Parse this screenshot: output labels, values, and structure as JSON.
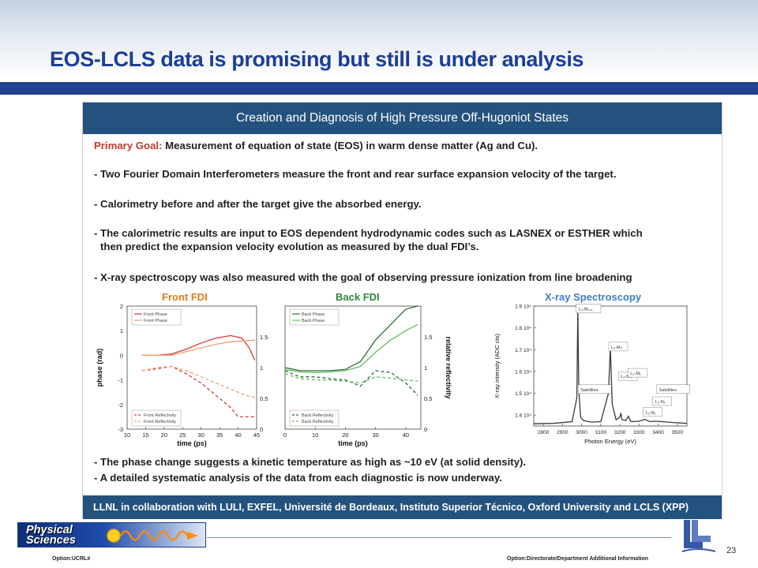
{
  "slide": {
    "title": "EOS-LCLS data is promising but still is under analysis",
    "page_number": "23",
    "footer_left": "Option:UCRL#",
    "footer_right": "Option:Directorate/Department  Additional Information",
    "logo_line1": "Physical",
    "logo_line2": "Sciences",
    "colors": {
      "title": "#1c3f95",
      "rule": "#22428f",
      "panel_header": "#24527e",
      "goal_label": "#c0392b"
    }
  },
  "panel": {
    "header": "Creation and Diagnosis of High Pressure Off-Hugoniot States",
    "goal_label": "Primary Goal:",
    "goal_text": "Measurement of equation of state (EOS) in warm dense matter (Ag and Cu).",
    "bullets": [
      "- Two Fourier Domain Interferometers measure the front and rear surface expansion velocity of the target.",
      "- Calorimetry before and after the target give the absorbed energy.",
      "- The calorimetric results are input to EOS dependent hydrodynamic codes such as LASNEX or ESTHER which",
      "then predict the expansion velocity evolution as measured by the dual FDI’s.",
      "- X-ray spectroscopy was also measured with the goal of observing pressure ionization from line broadening"
    ],
    "conclusions": [
      "- The phase change suggests a kinetic temperature as high as ~10 eV (at solid density).",
      "- A detailed systematic analysis of the data from each diagnostic is now underway."
    ],
    "footer": "LLNL in collaboration with LULI, EXFEL, Université de Bordeaux, Instituto Superior Técnico,  Oxford University and LCLS (XPP)"
  },
  "chart_data": [
    {
      "type": "line",
      "title": "Front FDI",
      "xlabel": "time (ps)",
      "ylabel": "phase (rad)",
      "xlim": [
        10,
        45
      ],
      "ylim": [
        -3,
        2
      ],
      "y2lim": [
        0,
        2
      ],
      "xticks": [
        "10",
        "15",
        "20",
        "25",
        "30",
        "35",
        "40",
        "45"
      ],
      "yticks": [
        "2",
        "1",
        "0",
        "-1",
        "-2",
        "-3"
      ],
      "y2ticks": [
        "1.5",
        "1",
        "0.5",
        "0"
      ],
      "legend_top": [
        "Front Phase",
        "Front Phase"
      ],
      "legend_bottom": [
        "Front Reflectivity",
        "Front Reflectivity"
      ],
      "series": [
        {
          "name": "Front Phase",
          "axis": "left",
          "style": "solid",
          "color": "#d8393a",
          "x": [
            14,
            18,
            22,
            26,
            30,
            34,
            38,
            41,
            43,
            44.5
          ],
          "y": [
            0.0,
            0.0,
            0.05,
            0.25,
            0.5,
            0.7,
            0.8,
            0.7,
            0.3,
            -0.2
          ]
        },
        {
          "name": "Front Phase",
          "axis": "left",
          "style": "solid",
          "color": "#f0a070",
          "x": [
            14,
            18,
            22,
            26,
            30,
            34,
            38,
            41,
            43,
            44.5
          ],
          "y": [
            0.0,
            0.0,
            0.0,
            0.15,
            0.3,
            0.45,
            0.55,
            0.58,
            0.6,
            0.62
          ]
        },
        {
          "name": "Front Reflectivity",
          "axis": "right",
          "style": "dashed",
          "color": "#d8393a",
          "x": [
            14,
            18,
            22,
            26,
            30,
            34,
            38,
            40,
            43,
            44.5
          ],
          "y": [
            0.95,
            0.98,
            1.02,
            0.9,
            0.75,
            0.55,
            0.35,
            0.2,
            0.2,
            0.2
          ]
        },
        {
          "name": "Front Reflectivity",
          "axis": "right",
          "style": "dashed",
          "color": "#f0a070",
          "x": [
            14,
            18,
            22,
            26,
            30,
            34,
            38,
            42,
            44.5
          ],
          "y": [
            0.95,
            1.0,
            1.02,
            0.95,
            0.85,
            0.75,
            0.65,
            0.55,
            0.52
          ]
        }
      ]
    },
    {
      "type": "line",
      "title": "Back FDI",
      "xlabel": "time (ps)",
      "ylabel": "relative reflectivity",
      "xlim": [
        0,
        45
      ],
      "ylim": [
        0,
        2
      ],
      "xticks": [
        "0",
        "10",
        "20",
        "30",
        "40"
      ],
      "y2ticks": [
        "1.5",
        "1",
        "0.5",
        "0"
      ],
      "legend_top": [
        "Back Phase",
        "Back Phase"
      ],
      "legend_bottom": [
        "Back Reflectivity",
        "Back Reflectivity"
      ],
      "series": [
        {
          "name": "Back Phase",
          "axis": "right",
          "style": "solid",
          "color": "#2e6b3a",
          "x": [
            0,
            5,
            10,
            15,
            20,
            25,
            30,
            35,
            40,
            44
          ],
          "y": [
            1.0,
            0.95,
            0.95,
            0.95,
            0.97,
            1.1,
            1.45,
            1.7,
            1.95,
            2.0
          ]
        },
        {
          "name": "Back Phase",
          "axis": "right",
          "style": "solid",
          "color": "#5fbf5f",
          "x": [
            0,
            5,
            10,
            15,
            20,
            25,
            30,
            35,
            40,
            44
          ],
          "y": [
            0.97,
            0.93,
            0.92,
            0.93,
            0.95,
            1.02,
            1.25,
            1.45,
            1.6,
            1.7
          ]
        },
        {
          "name": "Back Reflectivity",
          "axis": "right",
          "style": "dashed",
          "color": "#2e6b3a",
          "x": [
            0,
            5,
            10,
            15,
            20,
            25,
            30,
            35,
            40,
            44
          ],
          "y": [
            0.95,
            0.85,
            0.85,
            0.82,
            0.8,
            0.7,
            0.95,
            0.92,
            0.75,
            0.55
          ]
        },
        {
          "name": "Back Reflectivity",
          "axis": "right",
          "style": "dashed",
          "color": "#5fbf5f",
          "x": [
            0,
            5,
            10,
            15,
            20,
            25,
            30,
            35,
            40,
            44
          ],
          "y": [
            0.9,
            0.82,
            0.8,
            0.8,
            0.78,
            0.75,
            0.85,
            0.83,
            0.8,
            0.78
          ]
        }
      ]
    },
    {
      "type": "line",
      "title": "X-ray Spectroscopy",
      "xlabel": "Photon Energy (eV)",
      "ylabel": "X-ray intensity (ADC cts)",
      "xlim": [
        2750,
        3550
      ],
      "ylim": [
        13500,
        19000
      ],
      "xticks": [
        "2800",
        "2900",
        "3000",
        "3100",
        "3200",
        "3300",
        "3400",
        "3500"
      ],
      "yticks": [
        "1.9 10⁴",
        "1.8 10⁴",
        "1.7 10⁴",
        "1.6 10⁴",
        "1.5 10⁴",
        "1.4 10⁴"
      ],
      "peak_labels": [
        "L₃-M₄,₅",
        "L₂-M₄",
        "L₃-M₄",
        "L₃-M₁",
        "L₂-N₁",
        "L₃-N₁",
        "Satellites",
        "Satellites"
      ],
      "series": [
        {
          "name": "",
          "color": "#3a3a3a",
          "x": [
            2750,
            2850,
            2950,
            2975,
            2980,
            2985,
            2995,
            3010,
            3050,
            3100,
            3140,
            3150,
            3160,
            3180,
            3200,
            3205,
            3210,
            3230,
            3245,
            3255,
            3270,
            3300,
            3330,
            3345,
            3355,
            3380,
            3420,
            3480,
            3550
          ],
          "y": [
            13600,
            13620,
            13700,
            14800,
            18900,
            15200,
            13900,
            13750,
            13680,
            13700,
            15000,
            17100,
            14500,
            13780,
            13900,
            14100,
            13800,
            13750,
            13950,
            13720,
            13700,
            13720,
            13800,
            13750,
            13700,
            13720,
            13700,
            13660,
            13620
          ]
        }
      ]
    }
  ]
}
